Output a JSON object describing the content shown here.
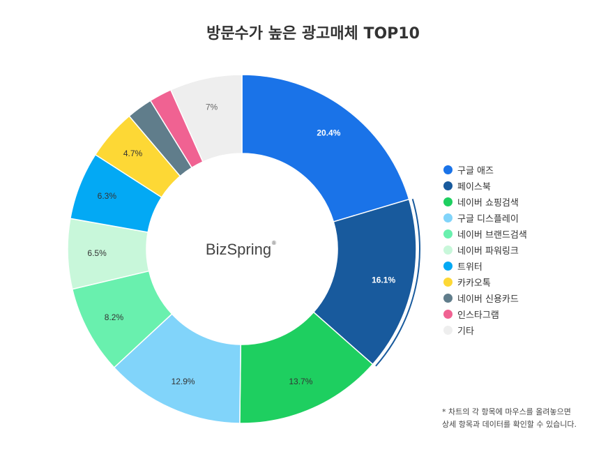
{
  "chart_data": {
    "type": "pie",
    "variant": "donut",
    "title": "방문수가 높은 광고매체 TOP10",
    "center_label": "BizSpring",
    "center_label_mark": "®",
    "highlighted_slice": "페이스북",
    "legend_position": "right",
    "slices": [
      {
        "label": "구글 애즈",
        "value": 20.4,
        "value_label": "20.4%",
        "color": "#1a73e8",
        "label_color": "#ffffff"
      },
      {
        "label": "페이스북",
        "value": 16.1,
        "value_label": "16.1%",
        "color": "#185a9d",
        "label_color": "#ffffff"
      },
      {
        "label": "네이버 쇼핑검색",
        "value": 13.7,
        "value_label": "13.7%",
        "color": "#1ecf60",
        "label_color": "#333333"
      },
      {
        "label": "구글 디스플레이",
        "value": 12.9,
        "value_label": "12.9%",
        "color": "#81d4fa",
        "label_color": "#333333"
      },
      {
        "label": "네이버 브랜드검색",
        "value": 8.2,
        "value_label": "8.2%",
        "color": "#69f0ae",
        "label_color": "#333333"
      },
      {
        "label": "네이버 파워링크",
        "value": 6.5,
        "value_label": "6.5%",
        "color": "#c8f7da",
        "label_color": "#333333"
      },
      {
        "label": "트위터",
        "value": 6.3,
        "value_label": "6.3%",
        "color": "#03a9f4",
        "label_color": "#333333"
      },
      {
        "label": "카카오톡",
        "value": 4.7,
        "value_label": "4.7%",
        "color": "#fdd835",
        "label_color": "#333333"
      },
      {
        "label": "네이버 신용카드",
        "value": 2.4,
        "value_label": "",
        "color": "#607d8b",
        "label_color": "#333333"
      },
      {
        "label": "인스타그램",
        "value": 2.1,
        "value_label": "",
        "color": "#f06292",
        "label_color": "#333333"
      },
      {
        "label": "기타",
        "value": 6.7,
        "value_label": "7%",
        "color": "#eeeeee",
        "label_color": "#666666"
      }
    ]
  },
  "footnote": {
    "line1": "* 차트의 각 항목에 마우스를 올려놓으면",
    "line2": "상세 항목과 데이터를 확인할 수 있습니다."
  }
}
